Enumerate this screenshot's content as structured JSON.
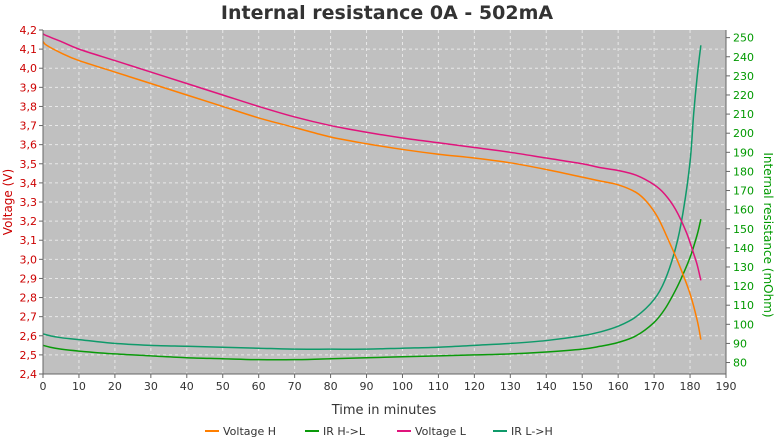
{
  "chart_data": {
    "type": "line",
    "title": "Internal resistance  0A - 502mA",
    "xlabel": "Time in minutes",
    "ylabel_left": "Voltage (V)",
    "ylabel_right": "Internal resistance (mOhm)",
    "xlim": [
      0,
      190
    ],
    "ylim_left": [
      2.4,
      4.2
    ],
    "ylim_right": [
      74,
      254
    ],
    "x_ticks": [
      0,
      10,
      20,
      30,
      40,
      50,
      60,
      70,
      80,
      90,
      100,
      110,
      120,
      130,
      140,
      150,
      160,
      170,
      180,
      190
    ],
    "y_left_ticks": [
      "2,4",
      "2,5",
      "2,6",
      "2,7",
      "2,8",
      "2,9",
      "3,0",
      "3,1",
      "3,2",
      "3,3",
      "3,4",
      "3,5",
      "3,6",
      "3,7",
      "3,8",
      "3,9",
      "4,0",
      "4,1",
      "4,2"
    ],
    "y_right_ticks": [
      80,
      90,
      100,
      110,
      120,
      130,
      140,
      150,
      160,
      170,
      180,
      190,
      200,
      210,
      220,
      230,
      240,
      250
    ],
    "grid": true,
    "legend_position": "bottom",
    "colors": {
      "voltage_h": "#ff7f00",
      "ir_hl": "#0a9a0a",
      "voltage_l": "#e0147c",
      "ir_lh": "#0f9a6a",
      "left_axis": "#cc0000",
      "right_axis": "#009900",
      "plot_bg": "#c0c0c0",
      "grid": "#e8e8e8"
    },
    "series": [
      {
        "name": "Voltage H",
        "axis": "left",
        "color": "#ff7f00",
        "x": [
          0,
          1,
          5,
          10,
          20,
          30,
          40,
          50,
          60,
          70,
          80,
          90,
          100,
          110,
          120,
          130,
          140,
          150,
          155,
          160,
          165,
          168,
          171,
          174,
          177,
          180,
          182,
          183
        ],
        "y": [
          4.14,
          4.12,
          4.08,
          4.04,
          3.98,
          3.92,
          3.86,
          3.8,
          3.74,
          3.69,
          3.64,
          3.605,
          3.575,
          3.55,
          3.53,
          3.505,
          3.47,
          3.43,
          3.41,
          3.39,
          3.35,
          3.3,
          3.22,
          3.1,
          2.97,
          2.82,
          2.68,
          2.58
        ]
      },
      {
        "name": "IR H->L",
        "axis": "right",
        "color": "#0a9a0a",
        "x": [
          0,
          2,
          5,
          10,
          20,
          30,
          40,
          50,
          60,
          70,
          80,
          90,
          100,
          110,
          120,
          130,
          140,
          150,
          155,
          160,
          165,
          170,
          173,
          176,
          178,
          180,
          182,
          183
        ],
        "y": [
          89,
          88,
          87,
          86,
          84.5,
          83.5,
          82.5,
          82,
          81.5,
          81.5,
          82,
          82.5,
          83,
          83.5,
          84,
          84.5,
          85.5,
          87,
          88.5,
          90.5,
          94,
          101,
          108,
          118,
          126,
          135,
          147,
          155
        ]
      },
      {
        "name": "Voltage L",
        "axis": "left",
        "color": "#e0147c",
        "x": [
          0,
          1,
          5,
          10,
          20,
          30,
          40,
          50,
          60,
          70,
          80,
          90,
          100,
          110,
          120,
          130,
          140,
          150,
          155,
          160,
          165,
          170,
          173,
          176,
          179,
          181,
          182,
          183
        ],
        "y": [
          4.18,
          4.17,
          4.14,
          4.1,
          4.04,
          3.98,
          3.92,
          3.86,
          3.8,
          3.745,
          3.7,
          3.665,
          3.635,
          3.61,
          3.585,
          3.56,
          3.53,
          3.5,
          3.48,
          3.465,
          3.44,
          3.39,
          3.34,
          3.26,
          3.14,
          3.03,
          2.97,
          2.89
        ]
      },
      {
        "name": "IR L->H",
        "axis": "right",
        "color": "#0f9a6a",
        "x": [
          0,
          2,
          5,
          10,
          20,
          30,
          40,
          50,
          60,
          70,
          80,
          90,
          100,
          110,
          120,
          130,
          140,
          150,
          155,
          160,
          165,
          170,
          173,
          176,
          178,
          180,
          181,
          182,
          183
        ],
        "y": [
          95,
          94,
          93,
          92,
          90,
          89,
          88.5,
          88,
          87.5,
          87,
          87,
          87,
          87.5,
          88,
          89,
          90,
          91.5,
          94,
          96,
          99,
          104,
          113,
          123,
          140,
          158,
          185,
          210,
          230,
          246
        ]
      }
    ]
  }
}
